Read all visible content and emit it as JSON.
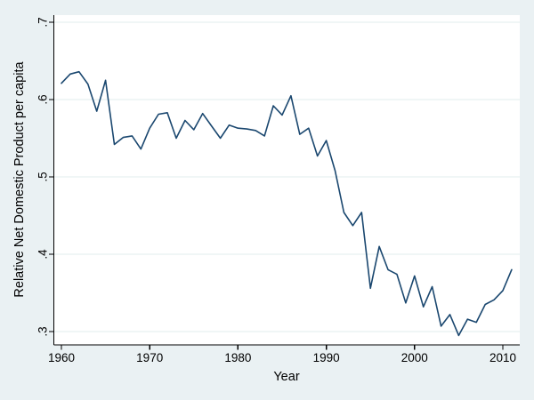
{
  "chart_data": {
    "type": "line",
    "title": "",
    "xlabel": "Year",
    "ylabel": "Relative Net Domestic Product per capita",
    "x": [
      1960,
      1961,
      1962,
      1963,
      1964,
      1965,
      1966,
      1967,
      1968,
      1969,
      1970,
      1971,
      1972,
      1973,
      1974,
      1975,
      1976,
      1977,
      1978,
      1979,
      1980,
      1981,
      1982,
      1983,
      1984,
      1985,
      1986,
      1987,
      1988,
      1989,
      1990,
      1991,
      1992,
      1993,
      1994,
      1995,
      1996,
      1997,
      1998,
      1999,
      2000,
      2001,
      2002,
      2003,
      2004,
      2005,
      2006,
      2007,
      2008,
      2009,
      2010,
      2011
    ],
    "values": [
      0.621,
      0.633,
      0.636,
      0.62,
      0.585,
      0.625,
      0.542,
      0.551,
      0.553,
      0.536,
      0.563,
      0.581,
      0.583,
      0.55,
      0.573,
      0.561,
      0.582,
      0.566,
      0.55,
      0.567,
      0.563,
      0.562,
      0.56,
      0.553,
      0.592,
      0.58,
      0.605,
      0.555,
      0.563,
      0.527,
      0.547,
      0.508,
      0.454,
      0.437,
      0.454,
      0.356,
      0.41,
      0.38,
      0.374,
      0.337,
      0.372,
      0.332,
      0.358,
      0.307,
      0.322,
      0.295,
      0.316,
      0.312,
      0.335,
      0.341,
      0.353,
      0.38
    ],
    "xticks": [
      1960,
      1970,
      1980,
      1990,
      2000,
      2010
    ],
    "yticks": [
      {
        "value": 0.3,
        "label": ".3"
      },
      {
        "value": 0.4,
        "label": ".4"
      },
      {
        "value": 0.5,
        "label": ".5"
      },
      {
        "value": 0.6,
        "label": ".6"
      },
      {
        "value": 0.7,
        "label": ".7"
      }
    ],
    "xlim": [
      1959.1,
      2011.9
    ],
    "ylim": [
      0.283,
      0.709
    ],
    "grid": true,
    "legend": "none",
    "colors": {
      "line": "#1a476f",
      "page_background": "#eaf1f3",
      "plot_background": "#ffffff",
      "grid_line": "#e2ecee",
      "axis": "#000000"
    }
  }
}
